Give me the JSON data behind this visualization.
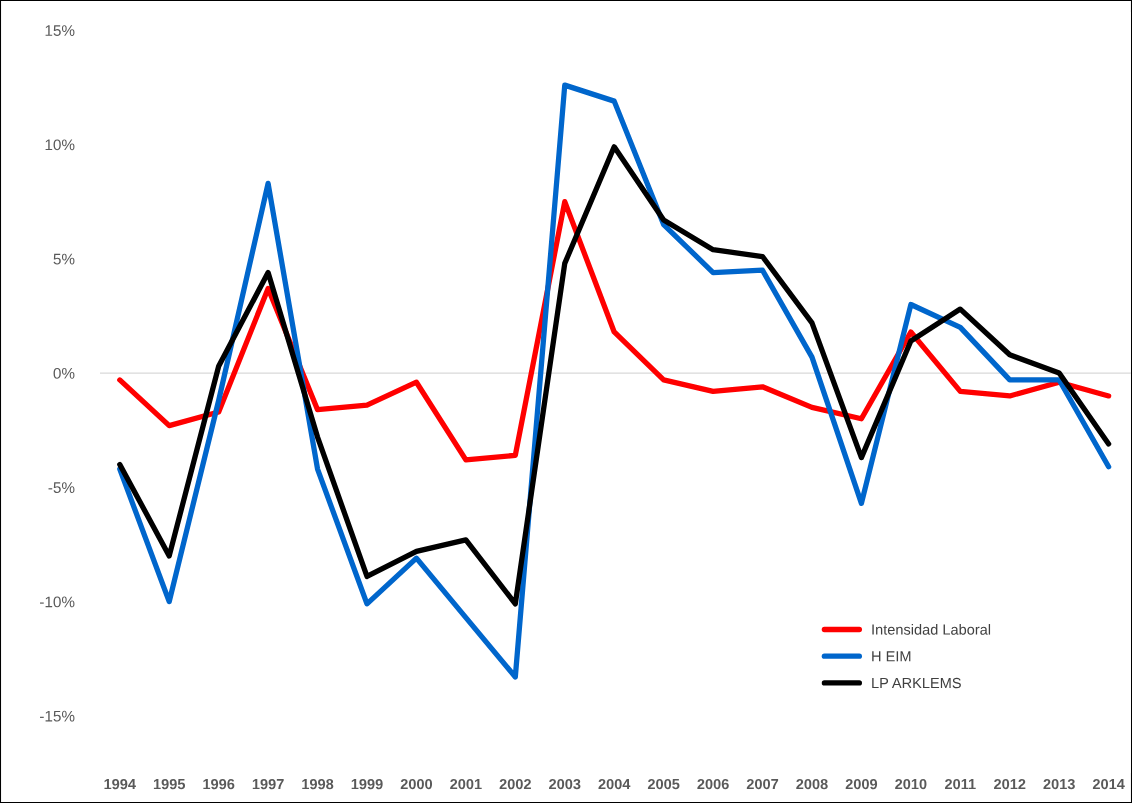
{
  "chart_data": {
    "type": "line",
    "categories": [
      "1994",
      "1995",
      "1996",
      "1997",
      "1998",
      "1999",
      "2000",
      "2001",
      "2002",
      "2003",
      "2004",
      "2005",
      "2006",
      "2007",
      "2008",
      "2009",
      "2010",
      "2011",
      "2012",
      "2013",
      "2014"
    ],
    "series": [
      {
        "name": "Intensidad Laboral",
        "color": "#ff0000",
        "values": [
          -0.3,
          -2.3,
          -1.7,
          3.7,
          -1.6,
          -1.4,
          -0.4,
          -3.8,
          -3.6,
          7.5,
          1.8,
          -0.3,
          -0.8,
          -0.6,
          -1.5,
          -2.0,
          1.8,
          -0.8,
          -1.0,
          -0.4,
          -1.0
        ]
      },
      {
        "name": "H EIM",
        "color": "#0066cc",
        "values": [
          -4.2,
          -10.0,
          -1.2,
          8.3,
          -4.2,
          -10.1,
          -8.1,
          -10.7,
          -13.3,
          12.6,
          11.9,
          6.5,
          4.4,
          4.5,
          0.7,
          -5.7,
          3.0,
          2.0,
          -0.3,
          -0.3,
          -4.1
        ]
      },
      {
        "name": "LP ARKLEMS",
        "color": "#000000",
        "values": [
          -4.0,
          -8.0,
          0.3,
          4.4,
          -2.8,
          -8.9,
          -7.8,
          -7.3,
          -10.1,
          4.8,
          9.9,
          6.7,
          5.4,
          5.1,
          2.2,
          -3.7,
          1.4,
          2.8,
          0.8,
          0.0,
          -3.1
        ]
      }
    ],
    "ylim": [
      -17.5,
      15.8
    ],
    "yticks": [
      {
        "value": -15,
        "label": "-15%"
      },
      {
        "value": -10,
        "label": "-10%"
      },
      {
        "value": -5,
        "label": "-5%"
      },
      {
        "value": 0,
        "label": "0%"
      },
      {
        "value": 5,
        "label": "5%"
      },
      {
        "value": 10,
        "label": "10%"
      },
      {
        "value": 15,
        "label": "15%"
      }
    ],
    "ref_lines": [
      {
        "axis": "y",
        "value": 0,
        "color": "#d9d9d9"
      }
    ],
    "grid": false,
    "legend": "bottom right",
    "marker": "none",
    "line_style": "solid"
  }
}
